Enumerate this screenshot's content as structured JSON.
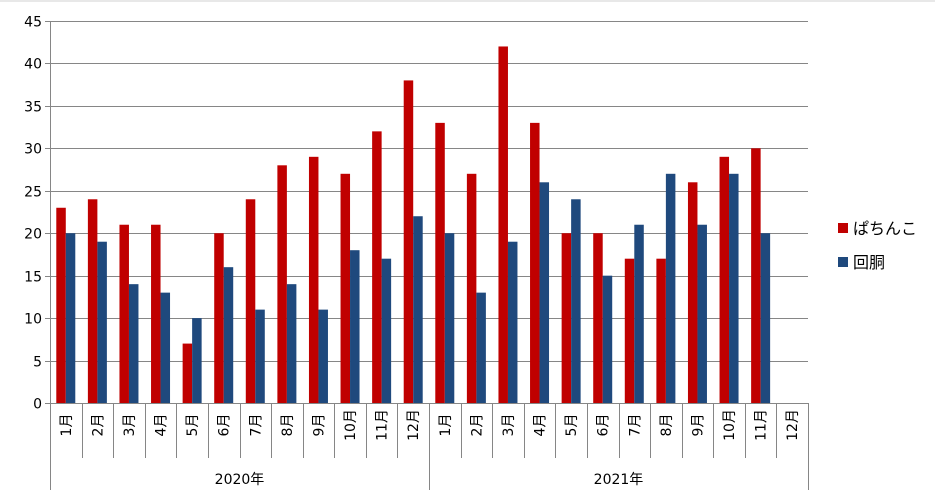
{
  "chart_data": {
    "type": "bar",
    "groups": [
      {
        "label": "2020年",
        "months": [
          "1月",
          "2月",
          "3月",
          "4月",
          "5月",
          "6月",
          "7月",
          "8月",
          "9月",
          "10月",
          "11月",
          "12月"
        ]
      },
      {
        "label": "2021年",
        "months": [
          "1月",
          "2月",
          "3月",
          "4月",
          "5月",
          "6月",
          "7月",
          "8月",
          "9月",
          "10月",
          "11月",
          "12月"
        ]
      }
    ],
    "series": [
      {
        "name": "ぱちんこ",
        "color": "#C00000",
        "values": [
          23,
          24,
          21,
          21,
          7,
          20,
          24,
          28,
          29,
          27,
          32,
          38,
          33,
          27,
          42,
          33,
          20,
          20,
          17,
          17,
          26,
          29,
          30,
          null
        ]
      },
      {
        "name": "回胴",
        "color": "#1F497D",
        "values": [
          20,
          19,
          14,
          13,
          10,
          16,
          11,
          14,
          11,
          18,
          17,
          22,
          20,
          13,
          19,
          26,
          24,
          15,
          21,
          27,
          21,
          27,
          20,
          null
        ]
      }
    ],
    "ylim": [
      0,
      45
    ],
    "yticks": [
      0,
      5,
      10,
      15,
      20,
      25,
      30,
      35,
      40,
      45
    ],
    "grid": true,
    "legend_position": "right"
  }
}
